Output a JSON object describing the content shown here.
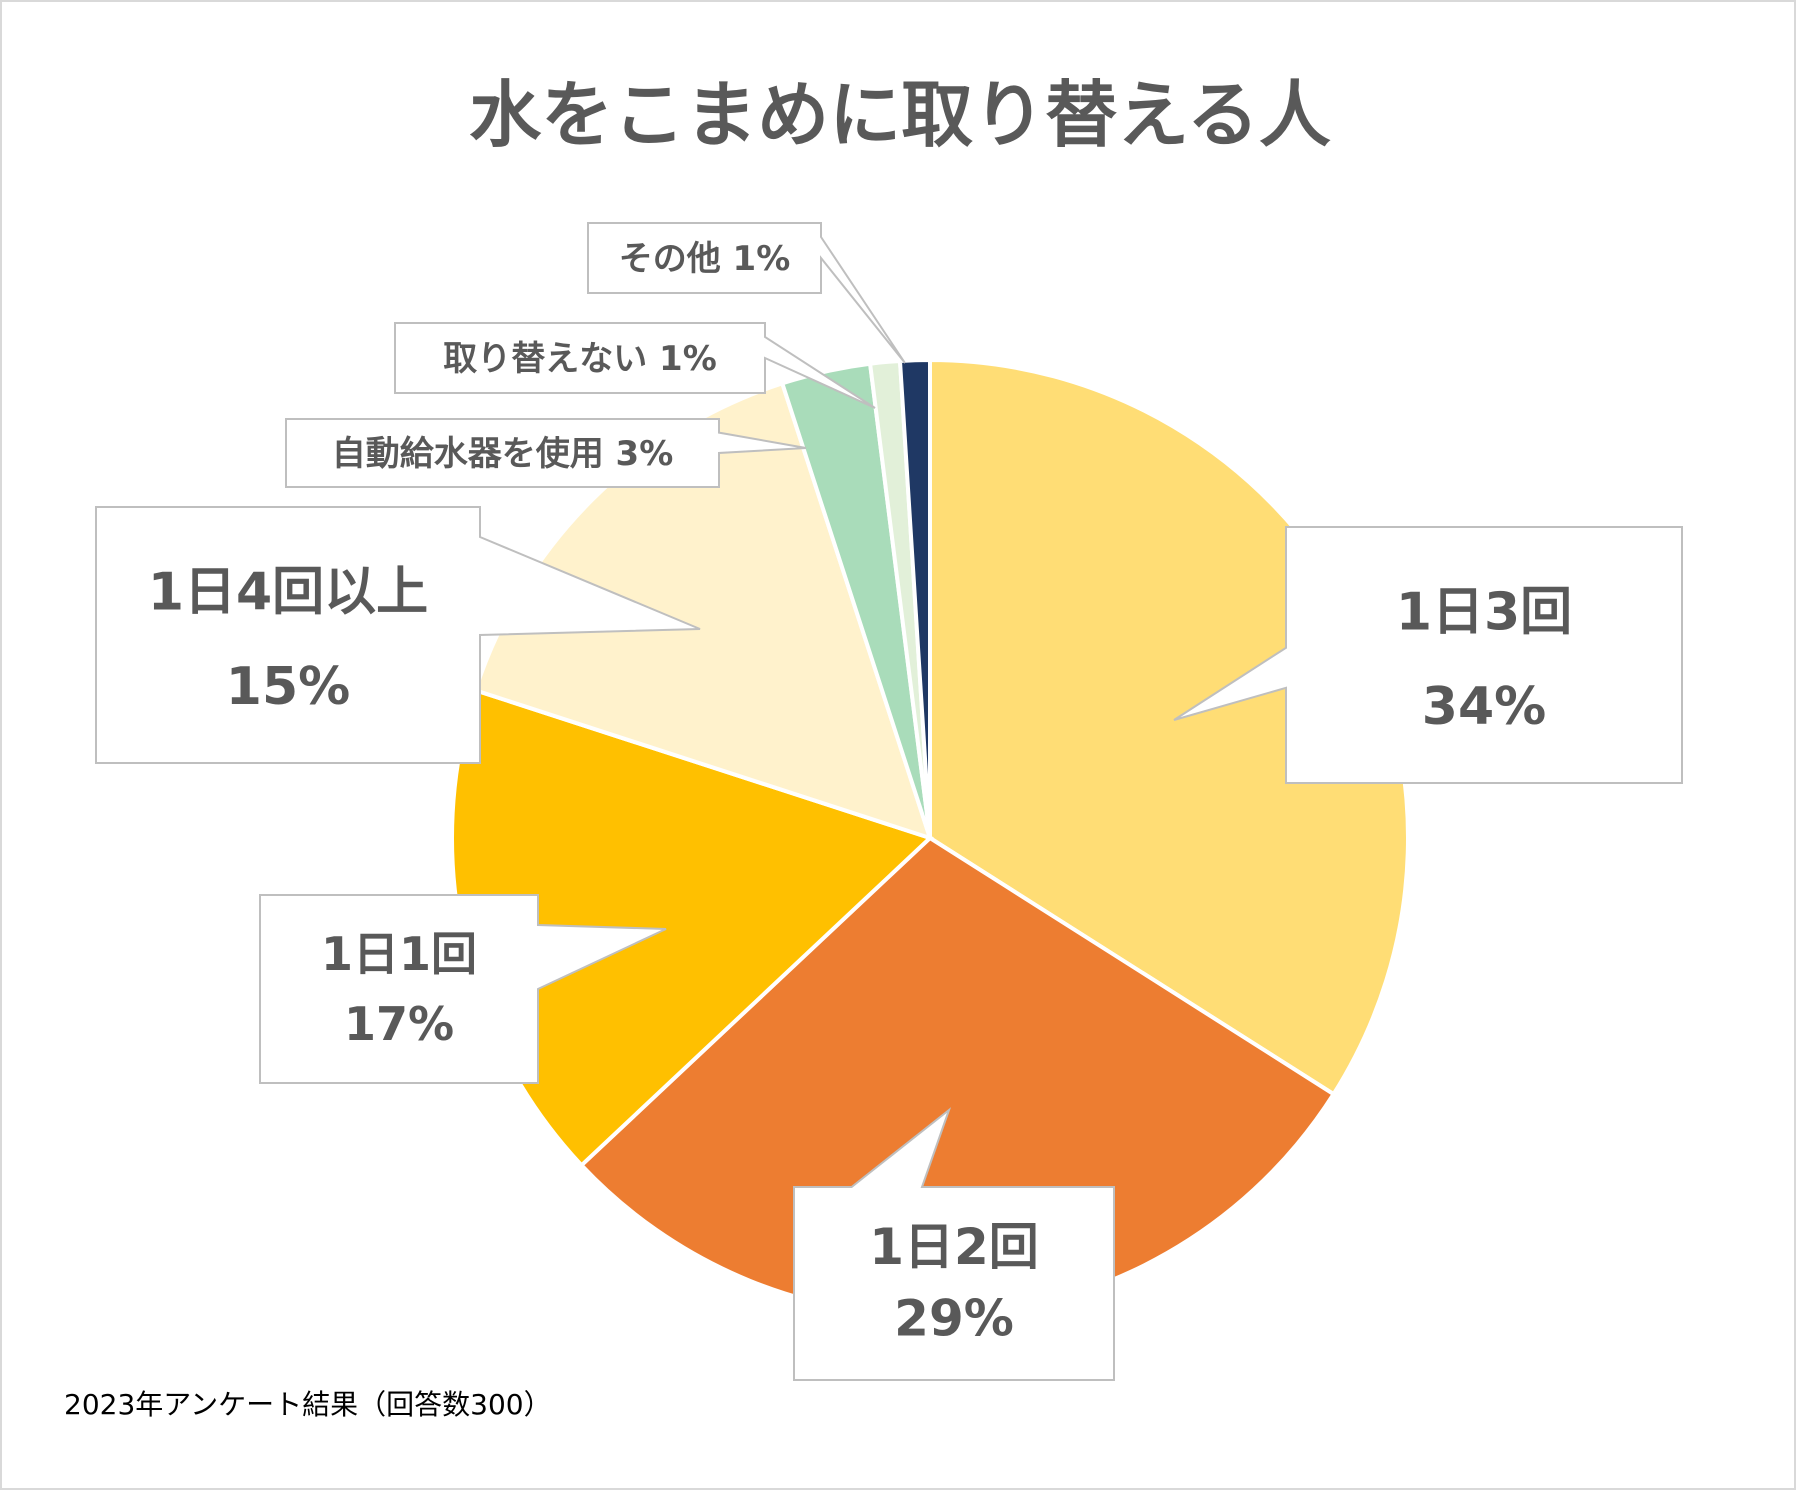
{
  "chart_data": {
    "type": "pie",
    "title": "水をこまめに取り替える人",
    "note": "2023年アンケート結果（回答数300）",
    "slices": [
      {
        "name": "1日3回",
        "value": 34,
        "label_line1": "1日3回",
        "label_line2": "34%",
        "color": "#FFDD75"
      },
      {
        "name": "1日2回",
        "value": 29,
        "label_line1": "1日2回",
        "label_line2": "29%",
        "color": "#ED7D31"
      },
      {
        "name": "1日1回",
        "value": 17,
        "label_line1": "1日1回",
        "label_line2": "17%",
        "color": "#FFC000"
      },
      {
        "name": "1日4回以上",
        "value": 15,
        "label_line1": "1日4回以上",
        "label_line2": "15%",
        "color": "#FFF2CC"
      },
      {
        "name": "自動給水器を使用",
        "value": 3,
        "label_line1": "自動給水器を使用 3%",
        "label_line2": "",
        "color": "#A9DCBA"
      },
      {
        "name": "取り替えない",
        "value": 1,
        "label_line1": "取り替えない 1%",
        "label_line2": "",
        "color": "#E2F0D9"
      },
      {
        "name": "その他",
        "value": 1,
        "label_line1": "その他 1%",
        "label_line2": "",
        "color": "#1F3864"
      }
    ],
    "legend": "none",
    "label_style": "callout"
  }
}
